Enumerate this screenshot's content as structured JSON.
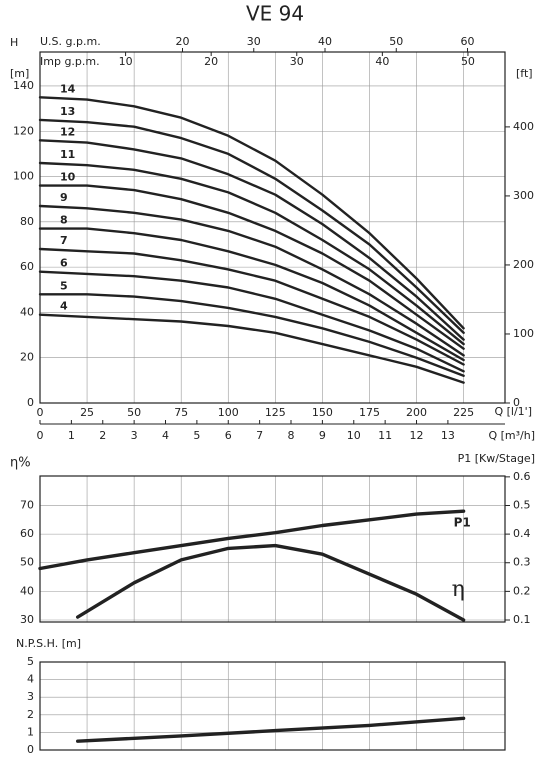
{
  "chart_data": [
    {
      "type": "line",
      "title": "VE 94",
      "ylabel": "H",
      "yunit": "[m]",
      "y2label": "[ft]",
      "xlabel": "Q [l/1']",
      "xlim": [
        0,
        247
      ],
      "xticks": [
        0,
        25,
        50,
        75,
        100,
        125,
        150,
        175,
        200,
        225
      ],
      "ylim": [
        0,
        155
      ],
      "yticks": [
        0,
        20,
        40,
        60,
        80,
        100,
        120,
        140
      ],
      "y2lim": [
        0,
        508.5
      ],
      "y2ticks": [
        0,
        100,
        200,
        300,
        400
      ],
      "grid": true,
      "extra_x_axes": [
        {
          "label": "U.S. g.p.m.",
          "lim": [
            0,
            65.26
          ],
          "ticks": [
            20,
            30,
            40,
            50,
            60
          ]
        },
        {
          "label": "Imp g.p.m.",
          "lim": [
            0,
            54.33
          ],
          "ticks": [
            10,
            20,
            30,
            40,
            50
          ]
        },
        {
          "label": "Q [m³/h]",
          "lim": [
            0,
            14.82
          ],
          "ticks": [
            0,
            1,
            2,
            3,
            4,
            5,
            6,
            7,
            8,
            9,
            10,
            11,
            12,
            13
          ]
        }
      ],
      "x": [
        0,
        25,
        50,
        75,
        100,
        125,
        150,
        175,
        200,
        225
      ],
      "series": [
        {
          "name": "14",
          "color": "#222222",
          "values": [
            135,
            134,
            131,
            126,
            118,
            107,
            92,
            75,
            55,
            33
          ]
        },
        {
          "name": "13",
          "color": "#222222",
          "values": [
            125,
            124,
            122,
            117,
            110,
            99,
            85,
            70,
            51,
            31
          ]
        },
        {
          "name": "12",
          "color": "#222222",
          "values": [
            116,
            115,
            112,
            108,
            101,
            92,
            79,
            64,
            47,
            28
          ]
        },
        {
          "name": "11",
          "color": "#222222",
          "values": [
            106,
            105,
            103,
            99,
            93,
            84,
            72,
            59,
            43,
            26
          ]
        },
        {
          "name": "10",
          "color": "#222222",
          "values": [
            96,
            96,
            94,
            90,
            84,
            76,
            66,
            54,
            39,
            24
          ]
        },
        {
          "name": "9",
          "color": "#222222",
          "values": [
            87,
            86,
            84,
            81,
            76,
            69,
            59,
            48,
            35,
            21
          ]
        },
        {
          "name": "8",
          "color": "#222222",
          "values": [
            77,
            77,
            75,
            72,
            67,
            61,
            53,
            43,
            31,
            19
          ]
        },
        {
          "name": "7",
          "color": "#222222",
          "values": [
            68,
            67,
            66,
            63,
            59,
            54,
            46,
            38,
            28,
            17
          ]
        },
        {
          "name": "6",
          "color": "#222222",
          "values": [
            58,
            57,
            56,
            54,
            51,
            46,
            39,
            32,
            24,
            14
          ]
        },
        {
          "name": "5",
          "color": "#222222",
          "values": [
            48,
            48,
            47,
            45,
            42,
            38,
            33,
            27,
            20,
            12
          ]
        },
        {
          "name": "4",
          "color": "#222222",
          "values": [
            39,
            38,
            37,
            36,
            34,
            31,
            26,
            21,
            16,
            9
          ]
        }
      ]
    },
    {
      "type": "line",
      "ylabel": "η%",
      "y2label": "P1 [Kw/Stage]",
      "xlim": [
        0,
        247
      ],
      "xticks": [
        0,
        25,
        50,
        75,
        100,
        125,
        150,
        175,
        200,
        225
      ],
      "ylim": [
        29.3,
        80.3
      ],
      "yticks": [
        30,
        40,
        50,
        60,
        70
      ],
      "y2lim": [
        0.093,
        0.603
      ],
      "y2ticks": [
        0.1,
        0.2,
        0.3,
        0.4,
        0.5,
        0.6
      ],
      "grid": true,
      "series": [
        {
          "name": "P1",
          "color": "#222222",
          "axis": "y2",
          "x": [
            0,
            25,
            50,
            75,
            100,
            125,
            150,
            175,
            200,
            225
          ],
          "values": [
            0.28,
            0.31,
            0.335,
            0.36,
            0.385,
            0.405,
            0.43,
            0.45,
            0.47,
            0.48
          ]
        },
        {
          "name": "η",
          "color": "#222222",
          "x": [
            20,
            50,
            75,
            100,
            125,
            150,
            175,
            200,
            225
          ],
          "values": [
            31,
            43,
            51,
            55,
            56,
            53,
            46,
            39,
            30
          ]
        }
      ]
    },
    {
      "type": "line",
      "ylabel": "N.P.S.H. [m]",
      "xlim": [
        0,
        247
      ],
      "xticks": [
        0,
        25,
        50,
        75,
        100,
        125,
        150,
        175,
        200,
        225
      ],
      "ylim": [
        0,
        5
      ],
      "yticks": [
        0,
        1,
        2,
        3,
        4,
        5
      ],
      "grid": true,
      "series": [
        {
          "color": "#222222",
          "x": [
            20,
            75,
            125,
            175,
            225
          ],
          "values": [
            0.5,
            0.8,
            1.1,
            1.4,
            1.8
          ]
        }
      ]
    }
  ]
}
